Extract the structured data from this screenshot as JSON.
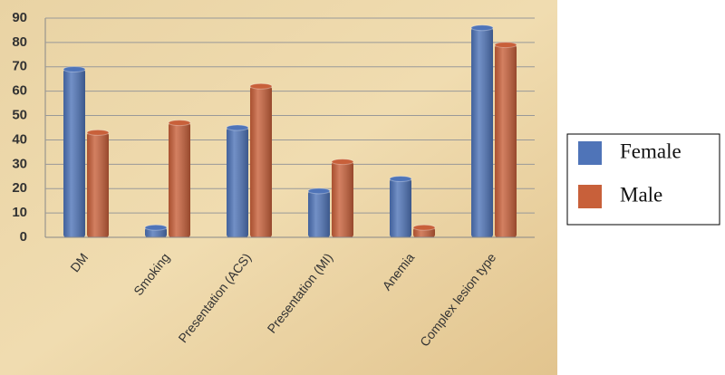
{
  "chart_data": {
    "type": "bar",
    "categories": [
      "DM",
      "Smoking",
      "Presentation (ACS)",
      "Presentation (MI)",
      "Anemia",
      "Complex lesion type"
    ],
    "series": [
      {
        "name": "Female",
        "color": "#4f74b8",
        "values": [
          69,
          4,
          45,
          19,
          24,
          86
        ]
      },
      {
        "name": "Male",
        "color": "#c8603a",
        "values": [
          43,
          47,
          62,
          31,
          4,
          79
        ]
      }
    ],
    "ylim": [
      0,
      90
    ],
    "yticks": [
      0,
      10,
      20,
      30,
      40,
      50,
      60,
      70,
      80,
      90
    ],
    "grid": true,
    "legend": "right"
  }
}
